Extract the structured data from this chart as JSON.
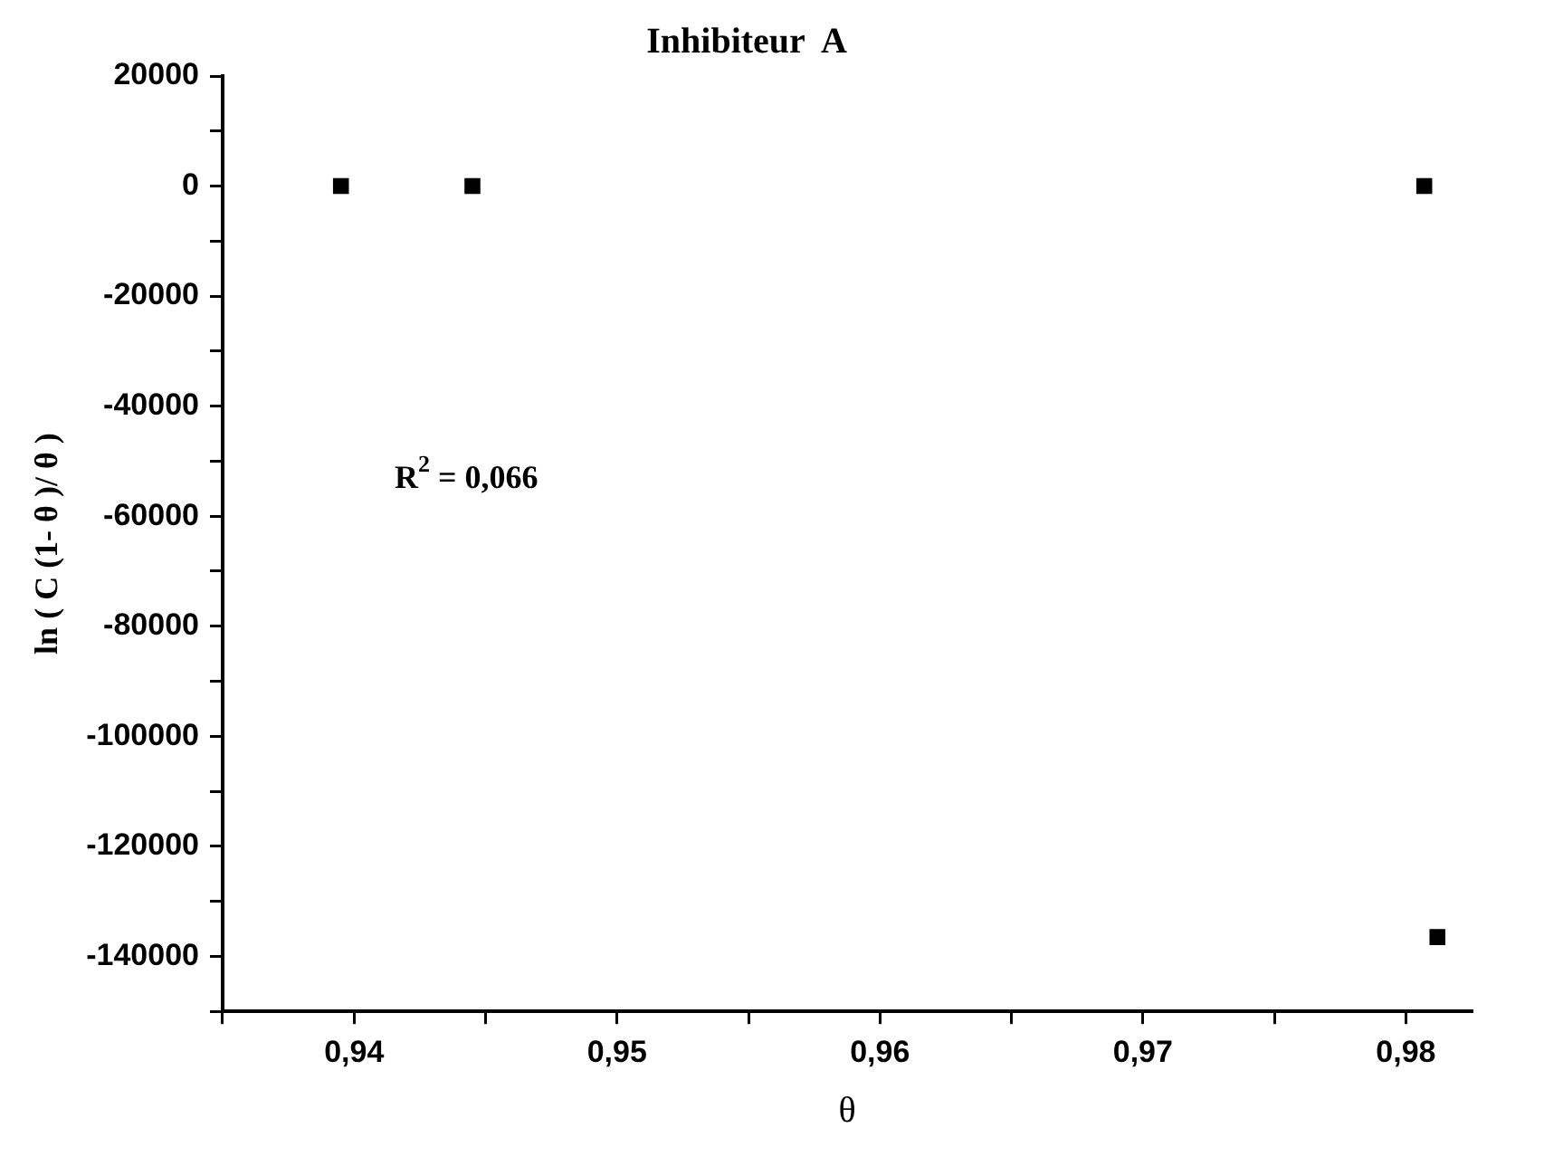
{
  "chart_data": {
    "type": "scatter",
    "title": "Inhibiteur  A",
    "xlabel": "θ",
    "ylabel": "ln ( C (1- θ )/ θ )",
    "x": [
      0.9395,
      0.9445,
      0.9807,
      0.9812
    ],
    "series": [
      {
        "color": "#000000",
        "values": [
          0,
          0,
          0,
          -136500
        ]
      }
    ],
    "marker": "square",
    "grid": false,
    "legend": false,
    "xlim": [
      0.935,
      0.9825
    ],
    "xticks": [
      {
        "value": 0.935,
        "label": null
      },
      {
        "value": 0.94,
        "label": "0,94"
      },
      {
        "value": 0.945,
        "label": null
      },
      {
        "value": 0.95,
        "label": "0,95"
      },
      {
        "value": 0.955,
        "label": null
      },
      {
        "value": 0.96,
        "label": "0,96"
      },
      {
        "value": 0.965,
        "label": null
      },
      {
        "value": 0.97,
        "label": "0,97"
      },
      {
        "value": 0.975,
        "label": null
      },
      {
        "value": 0.98,
        "label": "0,98"
      }
    ],
    "ylim": [
      -150000,
      20000
    ],
    "yticks": [
      {
        "value": -150000,
        "label": null
      },
      -140000,
      {
        "value": -130000,
        "label": null
      },
      -120000,
      {
        "value": -110000,
        "label": null
      },
      -100000,
      {
        "value": -90000,
        "label": null
      },
      -80000,
      {
        "value": -70000,
        "label": null
      },
      -60000,
      {
        "value": -50000,
        "label": null
      },
      -40000,
      {
        "value": -30000,
        "label": null
      },
      -20000,
      {
        "value": -10000,
        "label": null
      },
      0,
      {
        "value": 10000,
        "label": null
      },
      20000
    ],
    "annotations": [
      "R$^{2}$ = 0,066"
    ]
  }
}
